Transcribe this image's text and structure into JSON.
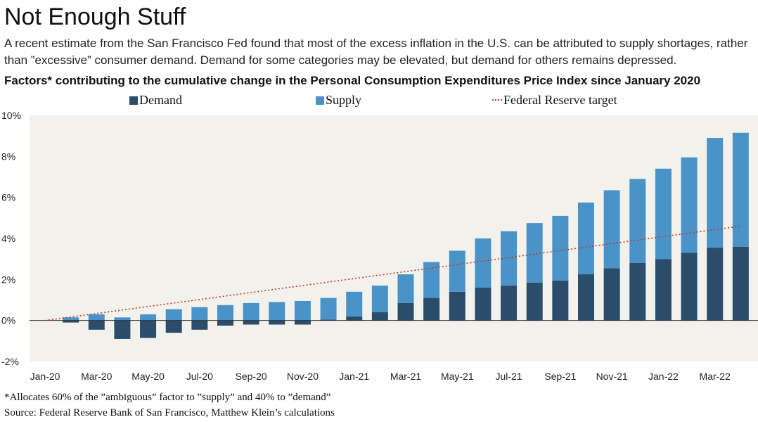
{
  "title": "Not Enough Stuff",
  "subtitle": "A recent estimate from the San Francisco Fed found that most of the excess inflation in the U.S. can be attributed to supply shortages, rather than ”excessive” consumer demand. Demand for some categories may be elevated, but demand for others remains depressed.",
  "footnote": "*Allocates 60% of the ”ambiguous” factor to ”supply” and 40% to ”demand”",
  "source": "Source: Federal Reserve Bank of San Francisco, Matthew Klein’s calculations",
  "colors": {
    "demand": "#2a4d6b",
    "supply": "#4a93c9",
    "target": "#c0392b",
    "plot_bg": "#f3f1ec"
  },
  "chart_data": {
    "type": "bar",
    "stacked": true,
    "title": "Factors* contributing to the cumulative change in the Personal Consumption Expenditures Price Index since January 2020",
    "xlabel": "",
    "ylabel": "",
    "ylim": [
      -2,
      10
    ],
    "yticks": [
      -2,
      0,
      2,
      4,
      6,
      8,
      10
    ],
    "ytick_labels": [
      "-2%",
      "0%",
      "2%",
      "4%",
      "6%",
      "8%",
      "10%"
    ],
    "grid": false,
    "legend_position": "top",
    "categories": [
      "Jan-20",
      "Feb-20",
      "Mar-20",
      "Apr-20",
      "May-20",
      "Jun-20",
      "Jul-20",
      "Aug-20",
      "Sep-20",
      "Oct-20",
      "Nov-20",
      "Dec-20",
      "Jan-21",
      "Feb-21",
      "Mar-21",
      "Apr-21",
      "May-21",
      "Jun-21",
      "Jul-21",
      "Aug-21",
      "Sep-21",
      "Oct-21",
      "Nov-21",
      "Dec-21",
      "Jan-22",
      "Feb-22",
      "Mar-22",
      "Apr-22"
    ],
    "xtick_labels": [
      "Jan-20",
      "Mar-20",
      "May-20",
      "Jul-20",
      "Sep-20",
      "Nov-20",
      "Jan-21",
      "Mar-21",
      "May-21",
      "Jul-21",
      "Sep-21",
      "Nov-21",
      "Jan-22",
      "Mar-22"
    ],
    "series": [
      {
        "name": "Demand",
        "values": [
          0,
          -0.1,
          -0.45,
          -0.9,
          -0.85,
          -0.6,
          -0.45,
          -0.25,
          -0.2,
          -0.2,
          -0.2,
          0.05,
          0.2,
          0.4,
          0.85,
          1.1,
          1.4,
          1.6,
          1.7,
          1.85,
          1.95,
          2.25,
          2.55,
          2.8,
          3.0,
          3.3,
          3.55,
          3.6
        ]
      },
      {
        "name": "Supply",
        "values": [
          0,
          0.15,
          0.3,
          0.15,
          0.3,
          0.55,
          0.65,
          0.75,
          0.85,
          0.9,
          0.95,
          1.05,
          1.2,
          1.3,
          1.4,
          1.75,
          2.0,
          2.4,
          2.65,
          2.9,
          3.15,
          3.5,
          3.8,
          4.1,
          4.4,
          4.65,
          5.35,
          5.55
        ]
      }
    ],
    "target_line": {
      "name": "Federal Reserve target",
      "x_start": "Jan-20",
      "x_end": "Apr-22",
      "y_start": 0,
      "y_end": 4.6
    }
  }
}
